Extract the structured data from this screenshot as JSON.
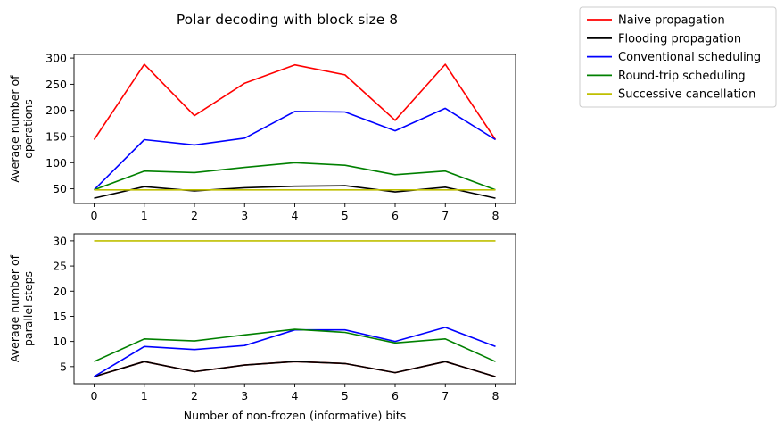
{
  "title": "Polar decoding with block size 8",
  "legend": {
    "placement": "outside-top-right",
    "entries": [
      {
        "label": "Naive propagation",
        "color": "#ff0000"
      },
      {
        "label": "Flooding propagation",
        "color": "#000000"
      },
      {
        "label": "Conventional scheduling",
        "color": "#0000ff"
      },
      {
        "label": "Round-trip scheduling",
        "color": "#008000"
      },
      {
        "label": "Successive cancellation",
        "color": "#bfbf00"
      }
    ]
  },
  "chart_data": [
    {
      "type": "line",
      "ylabel": [
        "Average number of",
        "operations"
      ],
      "xlabel": "",
      "x": [
        0,
        1,
        2,
        3,
        4,
        5,
        6,
        7,
        8
      ],
      "xticks": [
        "0",
        "1",
        "2",
        "3",
        "4",
        "5",
        "6",
        "7",
        "8"
      ],
      "yticks": [
        "50",
        "100",
        "150",
        "200",
        "250",
        "300"
      ],
      "xlim": [
        -0.4,
        8.4
      ],
      "ylim": [
        22,
        307
      ],
      "grid": false,
      "series": [
        {
          "name": "Naive propagation",
          "color": "#ff0000",
          "values": [
            144,
            288,
            190,
            252,
            287,
            268,
            181,
            288,
            144
          ]
        },
        {
          "name": "Flooding propagation",
          "color": "#000000",
          "values": [
            32,
            54,
            46,
            52,
            55,
            56,
            44,
            53,
            32
          ]
        },
        {
          "name": "Conventional scheduling",
          "color": "#0000ff",
          "values": [
            48,
            144,
            134,
            147,
            198,
            197,
            161,
            204,
            144
          ]
        },
        {
          "name": "Round-trip scheduling",
          "color": "#008000",
          "values": [
            48,
            84,
            81,
            91,
            100,
            95,
            77,
            84,
            48
          ]
        },
        {
          "name": "Successive cancellation",
          "color": "#bfbf00",
          "values": [
            48,
            48,
            48,
            48,
            48,
            48,
            48,
            48,
            48
          ]
        }
      ]
    },
    {
      "type": "line",
      "ylabel": [
        "Average number of",
        "parallel steps"
      ],
      "xlabel": "Number of non-frozen (informative) bits",
      "x": [
        0,
        1,
        2,
        3,
        4,
        5,
        6,
        7,
        8
      ],
      "xticks": [
        "0",
        "1",
        "2",
        "3",
        "4",
        "5",
        "6",
        "7",
        "8"
      ],
      "yticks": [
        "5",
        "10",
        "15",
        "20",
        "25",
        "30"
      ],
      "xlim": [
        -0.4,
        8.4
      ],
      "ylim": [
        1.6,
        31.4
      ],
      "grid": false,
      "series": [
        {
          "name": "Naive propagation",
          "color": "#ff0000",
          "values": [
            3,
            6,
            4,
            5.3,
            6,
            5.6,
            3.8,
            6,
            3
          ]
        },
        {
          "name": "Flooding propagation",
          "color": "#000000",
          "values": [
            3,
            6,
            4,
            5.3,
            6,
            5.6,
            3.8,
            6,
            3
          ]
        },
        {
          "name": "Conventional scheduling",
          "color": "#0000ff",
          "values": [
            3,
            9,
            8.4,
            9.2,
            12.3,
            12.3,
            10,
            12.8,
            9
          ]
        },
        {
          "name": "Round-trip scheduling",
          "color": "#008000",
          "values": [
            6,
            10.5,
            10.1,
            11.3,
            12.4,
            11.8,
            9.7,
            10.5,
            6
          ]
        },
        {
          "name": "Successive cancellation",
          "color": "#bfbf00",
          "values": [
            30,
            30,
            30,
            30,
            30,
            30,
            30,
            30,
            30
          ]
        }
      ]
    }
  ]
}
